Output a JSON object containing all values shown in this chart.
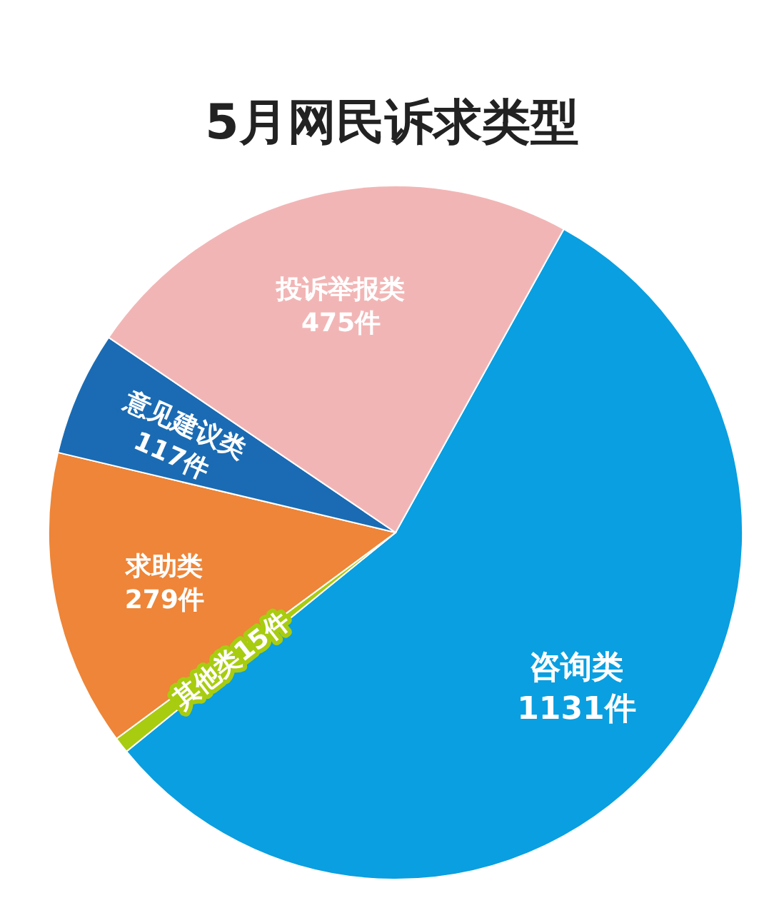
{
  "chart_data": {
    "type": "pie",
    "title": "5月网民诉求类型",
    "categories": [
      "咨询类",
      "其他类",
      "求助类",
      "意见建议类",
      "投诉举报类"
    ],
    "values": [
      1131,
      15,
      279,
      117,
      475
    ],
    "colors": [
      "#0a9fe0",
      "#a8cc10",
      "#ee8538",
      "#1a6bb3",
      "#f2b5b5"
    ],
    "value_labels": [
      "1131件",
      "15件",
      "279件",
      "117件",
      "475件"
    ]
  }
}
